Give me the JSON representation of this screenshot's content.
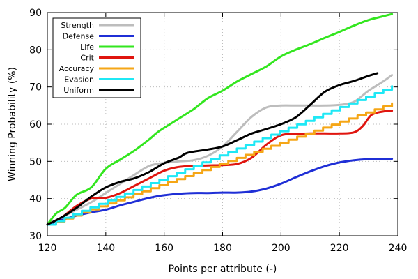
{
  "chart_data": {
    "type": "line",
    "title": "",
    "xlabel": "Points per attribute (-)",
    "ylabel": "Winning Probability (%)",
    "xlim": [
      120,
      240
    ],
    "ylim": [
      30,
      90
    ],
    "xticks": [
      120,
      140,
      160,
      180,
      200,
      220,
      240
    ],
    "yticks": [
      30,
      40,
      50,
      60,
      70,
      80,
      90
    ],
    "grid": true,
    "legend_position": "top-left",
    "series": [
      {
        "name": "Strength",
        "color": "#bdbdbd",
        "style": "smooth",
        "points": [
          [
            120,
            33
          ],
          [
            125,
            35
          ],
          [
            130,
            37
          ],
          [
            135,
            39
          ],
          [
            140,
            41.5
          ],
          [
            145,
            44
          ],
          [
            150,
            46.5
          ],
          [
            155,
            48.8
          ],
          [
            160,
            49.6
          ],
          [
            165,
            50
          ],
          [
            170,
            50.3
          ],
          [
            175,
            51.5
          ],
          [
            180,
            54
          ],
          [
            185,
            58
          ],
          [
            190,
            62
          ],
          [
            195,
            64.5
          ],
          [
            200,
            65
          ],
          [
            205,
            65
          ],
          [
            210,
            65
          ],
          [
            215,
            65
          ],
          [
            220,
            65.2
          ],
          [
            225,
            66
          ],
          [
            230,
            69
          ],
          [
            235,
            71.5
          ],
          [
            238,
            73.2
          ]
        ]
      },
      {
        "name": "Defense",
        "color": "#1f2fd6",
        "style": "smooth",
        "points": [
          [
            120,
            33
          ],
          [
            125,
            34.3
          ],
          [
            130,
            35.4
          ],
          [
            135,
            36.3
          ],
          [
            140,
            37
          ],
          [
            145,
            38.2
          ],
          [
            150,
            39.2
          ],
          [
            155,
            40.2
          ],
          [
            160,
            40.9
          ],
          [
            165,
            41.3
          ],
          [
            170,
            41.5
          ],
          [
            175,
            41.5
          ],
          [
            180,
            41.6
          ],
          [
            185,
            41.6
          ],
          [
            190,
            41.9
          ],
          [
            195,
            42.7
          ],
          [
            200,
            44
          ],
          [
            205,
            45.7
          ],
          [
            210,
            47.3
          ],
          [
            215,
            48.7
          ],
          [
            220,
            49.7
          ],
          [
            225,
            50.3
          ],
          [
            230,
            50.6
          ],
          [
            235,
            50.7
          ],
          [
            238,
            50.7
          ]
        ]
      },
      {
        "name": "Life",
        "color": "#33e61f",
        "style": "smooth",
        "points": [
          [
            120,
            33
          ],
          [
            123,
            36
          ],
          [
            126,
            37.5
          ],
          [
            130,
            41
          ],
          [
            135,
            43
          ],
          [
            140,
            48
          ],
          [
            145,
            50.5
          ],
          [
            150,
            53
          ],
          [
            155,
            56
          ],
          [
            158,
            58
          ],
          [
            162,
            60
          ],
          [
            165,
            61.5
          ],
          [
            170,
            64
          ],
          [
            175,
            67
          ],
          [
            180,
            69
          ],
          [
            185,
            71.5
          ],
          [
            190,
            73.5
          ],
          [
            195,
            75.5
          ],
          [
            200,
            78.2
          ],
          [
            205,
            80
          ],
          [
            210,
            81.5
          ],
          [
            215,
            83.2
          ],
          [
            220,
            84.8
          ],
          [
            225,
            86.5
          ],
          [
            230,
            88
          ],
          [
            235,
            89
          ],
          [
            238,
            89.6
          ]
        ]
      },
      {
        "name": "Crit",
        "color": "#e0150f",
        "style": "smooth",
        "points": [
          [
            120,
            33
          ],
          [
            125,
            35
          ],
          [
            130,
            38
          ],
          [
            135,
            40
          ],
          [
            140,
            40.2
          ],
          [
            145,
            41.5
          ],
          [
            150,
            43.5
          ],
          [
            155,
            45.5
          ],
          [
            160,
            47.5
          ],
          [
            165,
            48.5
          ],
          [
            170,
            48.8
          ],
          [
            175,
            48.9
          ],
          [
            180,
            49
          ],
          [
            185,
            49.3
          ],
          [
            190,
            51
          ],
          [
            195,
            54.5
          ],
          [
            200,
            57
          ],
          [
            205,
            57.4
          ],
          [
            210,
            57.5
          ],
          [
            215,
            57.5
          ],
          [
            220,
            57.5
          ],
          [
            225,
            57.8
          ],
          [
            228,
            59.5
          ],
          [
            231,
            62.5
          ],
          [
            235,
            63.4
          ],
          [
            238,
            63.6
          ]
        ]
      },
      {
        "name": "Accuracy",
        "color": "#f5a616",
        "style": "step",
        "points": [
          [
            120,
            33
          ],
          [
            238,
            65.6
          ]
        ]
      },
      {
        "name": "Evasion",
        "color": "#1fe8f5",
        "style": "step",
        "points": [
          [
            120,
            33
          ],
          [
            238,
            70.2
          ]
        ]
      },
      {
        "name": "Uniform",
        "color": "#000000",
        "style": "smooth",
        "points": [
          [
            120,
            33
          ],
          [
            125,
            35
          ],
          [
            130,
            37.5
          ],
          [
            135,
            40.5
          ],
          [
            140,
            43
          ],
          [
            145,
            44.5
          ],
          [
            150,
            45.5
          ],
          [
            155,
            47.2
          ],
          [
            160,
            49.5
          ],
          [
            165,
            51
          ],
          [
            168,
            52.3
          ],
          [
            175,
            53.2
          ],
          [
            180,
            54
          ],
          [
            185,
            55.7
          ],
          [
            190,
            57.5
          ],
          [
            195,
            58.7
          ],
          [
            200,
            60
          ],
          [
            205,
            61.8
          ],
          [
            210,
            65.2
          ],
          [
            215,
            68.7
          ],
          [
            220,
            70.5
          ],
          [
            225,
            71.6
          ],
          [
            230,
            73
          ],
          [
            233,
            73.7
          ]
        ]
      }
    ]
  }
}
